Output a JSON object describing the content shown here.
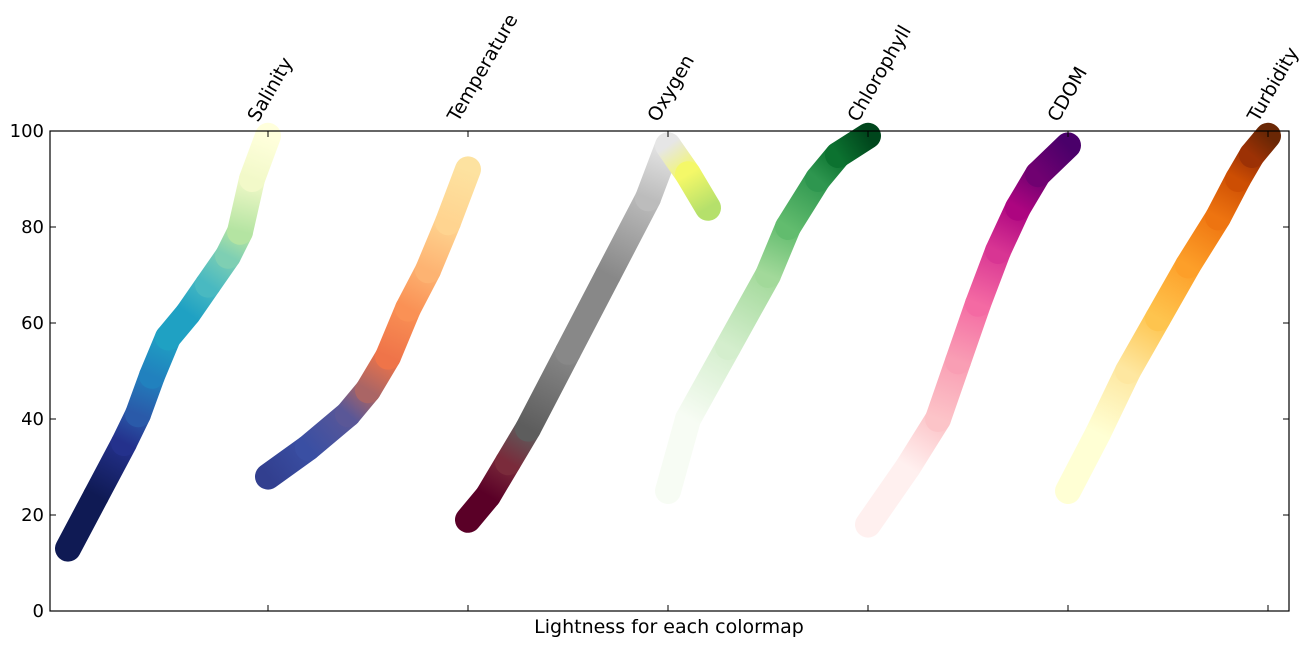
{
  "chart_data": {
    "type": "line",
    "xlabel": "Lightness for each colormap",
    "ylim": [
      0,
      100
    ],
    "yticks": [
      0,
      20,
      40,
      60,
      80,
      100
    ],
    "grid": false,
    "categories": [
      "Salinity",
      "Temperature",
      "Oxygen",
      "Chlorophyll",
      "CDOM",
      "Turbidity"
    ],
    "series": [
      {
        "name": "Salinity",
        "points": [
          [
            0.0,
            13
          ],
          [
            0.14,
            24
          ],
          [
            0.28,
            35
          ],
          [
            0.35,
            41
          ],
          [
            0.42,
            49
          ],
          [
            0.5,
            57
          ],
          [
            0.6,
            62
          ],
          [
            0.7,
            68
          ],
          [
            0.8,
            74
          ],
          [
            0.86,
            79
          ],
          [
            0.92,
            90
          ],
          [
            1.0,
            99
          ]
        ],
        "colors": [
          "#0f1a54",
          "#24318c",
          "#2a5aa9",
          "#2181be",
          "#1fa1c3",
          "#49b9c1",
          "#7ecfb3",
          "#b4e4a2",
          "#f2f9c9",
          "#ffffdc"
        ]
      },
      {
        "name": "Temperature",
        "points": [
          [
            0.0,
            28
          ],
          [
            0.2,
            34
          ],
          [
            0.4,
            41
          ],
          [
            0.5,
            46
          ],
          [
            0.6,
            53
          ],
          [
            0.7,
            63
          ],
          [
            0.8,
            71
          ],
          [
            0.9,
            81
          ],
          [
            1.0,
            92
          ]
        ],
        "colors": [
          "#323f8f",
          "#3a4fa3",
          "#5a5797",
          "#aa6565",
          "#ef7449",
          "#fa9155",
          "#fdb372",
          "#ffd490",
          "#fde2a0"
        ]
      },
      {
        "name": "Oxygen",
        "points": [
          [
            0.0,
            19
          ],
          [
            0.1,
            24
          ],
          [
            0.2,
            31
          ],
          [
            0.3,
            38
          ],
          [
            0.5,
            54
          ],
          [
            0.7,
            70
          ],
          [
            0.9,
            86
          ],
          [
            1.0,
            97
          ],
          [
            1.1,
            91
          ],
          [
            1.2,
            84
          ]
        ],
        "colors": [
          "#5a0027",
          "#7a2b3b",
          "#5d5d5d",
          "#888888",
          "#bcbcbc",
          "#e6e6e6",
          "#f4f868",
          "#b5e06b"
        ]
      },
      {
        "name": "Chlorophyll",
        "points": [
          [
            0.0,
            25
          ],
          [
            0.1,
            40
          ],
          [
            0.3,
            55
          ],
          [
            0.5,
            70
          ],
          [
            0.6,
            80
          ],
          [
            0.75,
            90
          ],
          [
            0.85,
            95
          ],
          [
            1.0,
            99
          ]
        ],
        "colors": [
          "#f7fcf4",
          "#d4eecd",
          "#a2d99a",
          "#62bc6e",
          "#2e964f",
          "#0c7230",
          "#00461c"
        ]
      },
      {
        "name": "CDOM",
        "points": [
          [
            0.0,
            18
          ],
          [
            0.2,
            30
          ],
          [
            0.35,
            40
          ],
          [
            0.45,
            52
          ],
          [
            0.55,
            64
          ],
          [
            0.65,
            75
          ],
          [
            0.75,
            84
          ],
          [
            0.85,
            91
          ],
          [
            1.0,
            97
          ]
        ],
        "colors": [
          "#fff0ef",
          "#fcc4c8",
          "#f99eb4",
          "#f46aa3",
          "#d83593",
          "#ad0580",
          "#700171",
          "#4a006a"
        ]
      },
      {
        "name": "Turbidity",
        "points": [
          [
            0.0,
            25
          ],
          [
            0.15,
            37
          ],
          [
            0.3,
            50
          ],
          [
            0.45,
            61
          ],
          [
            0.6,
            72
          ],
          [
            0.75,
            82
          ],
          [
            0.85,
            90
          ],
          [
            0.92,
            95
          ],
          [
            1.0,
            99
          ]
        ],
        "colors": [
          "#ffffd4",
          "#fee7a0",
          "#fec44e",
          "#fd9f29",
          "#ee7410",
          "#cd4e03",
          "#9c3105",
          "#6a2705"
        ]
      }
    ]
  }
}
